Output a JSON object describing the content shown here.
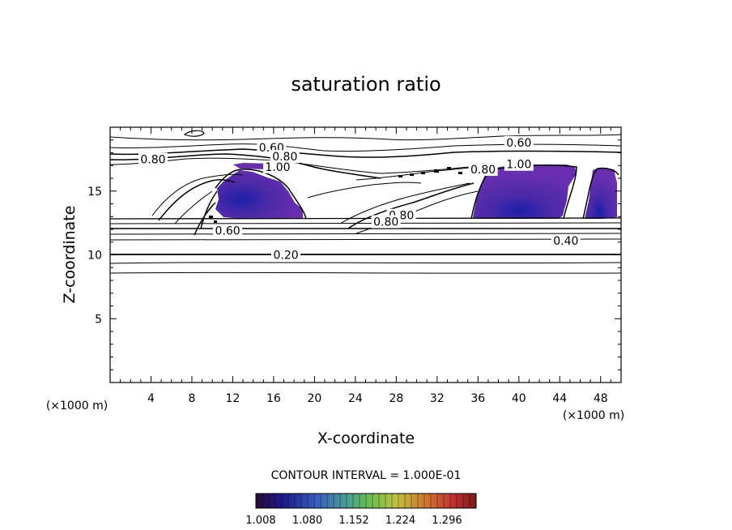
{
  "chart_data": {
    "type": "heatmap",
    "title": "saturation ratio",
    "xlabel": "X-coordinate",
    "ylabel": "Z-coordinate",
    "x_unit": "(×1000 m)",
    "z_unit": "(×1000 m)",
    "xlim": [
      0,
      50
    ],
    "ylim": [
      0,
      20
    ],
    "x_ticks": [
      4,
      8,
      12,
      16,
      20,
      24,
      28,
      32,
      36,
      40,
      44,
      48
    ],
    "y_ticks": [
      5,
      10,
      15
    ],
    "contour_interval_text": "CONTOUR INTERVAL = 1.000E-01",
    "contour_labels": [
      {
        "text": "0.60",
        "x": 15.8,
        "z": 18.4
      },
      {
        "text": "0.80",
        "x": 17.1,
        "z": 17.7
      },
      {
        "text": "0.80",
        "x": 4.2,
        "z": 17.5
      },
      {
        "text": "1.00",
        "x": 16.4,
        "z": 16.9
      },
      {
        "text": "0.60",
        "x": 40.0,
        "z": 18.8
      },
      {
        "text": "0.80",
        "x": 36.5,
        "z": 16.7
      },
      {
        "text": "1.00",
        "x": 40.0,
        "z": 17.1
      },
      {
        "text": "0.80",
        "x": 28.5,
        "z": 13.1
      },
      {
        "text": "0.80",
        "x": 27.0,
        "z": 12.6
      },
      {
        "text": "0.60",
        "x": 11.5,
        "z": 11.9
      },
      {
        "text": "0.40",
        "x": 44.6,
        "z": 11.1
      },
      {
        "text": "0.20",
        "x": 17.2,
        "z": 10.0
      }
    ],
    "supersaturated_regions_note_values": [
      1.008,
      1.296
    ],
    "colorbar": {
      "ticks": [
        "1.008",
        "1.080",
        "1.152",
        "1.224",
        "1.296"
      ],
      "colors": [
        "#2a0a3a",
        "#1a1a8a",
        "#3a60c0",
        "#4aa090",
        "#6abf4a",
        "#c0c040",
        "#d07030",
        "#c03030",
        "#7a1a1a"
      ]
    }
  }
}
